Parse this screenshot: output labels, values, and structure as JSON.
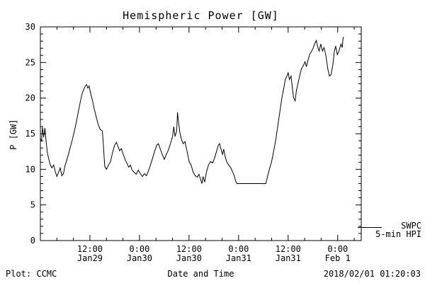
{
  "chart_data": {
    "type": "line",
    "title": "Hemispheric Power [GW]",
    "xlabel": "Date and Time",
    "ylabel": "P [GW]",
    "ylim": [
      0,
      30
    ],
    "yticks": [
      0,
      5,
      10,
      15,
      20,
      25,
      30
    ],
    "y_minor_step": 1,
    "xlim_hours": [
      0,
      77.7
    ],
    "x_unit": "hours since 2018-01-29 00:00 UT",
    "x_minor_step_hours": 4,
    "xticks": [
      {
        "t": 12,
        "line1": "12:00",
        "line2": "Jan29"
      },
      {
        "t": 24,
        "line1": "0:00",
        "line2": "Jan30"
      },
      {
        "t": 36,
        "line1": "12:00",
        "line2": "Jan30"
      },
      {
        "t": 48,
        "line1": "0:00",
        "line2": "Jan31"
      },
      {
        "t": 60,
        "line1": "12:00",
        "line2": "Jan31"
      },
      {
        "t": 72,
        "line1": "0:00",
        "line2": "Feb 1"
      }
    ],
    "grid": false,
    "legend": {
      "position": "right-bottom-outside",
      "line1": "SWPC",
      "line2": "5-min HPI"
    },
    "line_color": "#000000",
    "series": [
      {
        "name": "SWPC 5-min HPI",
        "points": [
          [
            0,
            14.3
          ],
          [
            0.3,
            14
          ],
          [
            0.5,
            15.9
          ],
          [
            0.8,
            14.5
          ],
          [
            1.1,
            15.8
          ],
          [
            1.4,
            13.8
          ],
          [
            1.7,
            12.3
          ],
          [
            2,
            11.5
          ],
          [
            2.4,
            10.6
          ],
          [
            2.8,
            10.2
          ],
          [
            3.2,
            10.6
          ],
          [
            3.6,
            9.7
          ],
          [
            4,
            9
          ],
          [
            4.4,
            9.6
          ],
          [
            4.8,
            10.2
          ],
          [
            5.2,
            9.1
          ],
          [
            5.6,
            9.4
          ],
          [
            6,
            10.6
          ],
          [
            6.4,
            11.3
          ],
          [
            6.8,
            12.1
          ],
          [
            7.2,
            13
          ],
          [
            7.7,
            14.1
          ],
          [
            8.2,
            15.3
          ],
          [
            8.7,
            16.6
          ],
          [
            9.2,
            18.1
          ],
          [
            9.7,
            19.6
          ],
          [
            10.1,
            20.6
          ],
          [
            10.5,
            21.2
          ],
          [
            10.9,
            21.7
          ],
          [
            11.2,
            21.9
          ],
          [
            11.5,
            21.4
          ],
          [
            11.8,
            21.7
          ],
          [
            12.2,
            20.6
          ],
          [
            12.6,
            19.7
          ],
          [
            13,
            18.6
          ],
          [
            13.5,
            17.4
          ],
          [
            14,
            16.3
          ],
          [
            14.5,
            15.6
          ],
          [
            15,
            15.4
          ],
          [
            15.3,
            13
          ],
          [
            15.6,
            10.4
          ],
          [
            16,
            10
          ],
          [
            16.5,
            10.6
          ],
          [
            17,
            11.1
          ],
          [
            17.5,
            12.4
          ],
          [
            18,
            13.4
          ],
          [
            18.4,
            13.8
          ],
          [
            18.8,
            13.2
          ],
          [
            19.2,
            12.6
          ],
          [
            19.6,
            12.9
          ],
          [
            20,
            12.2
          ],
          [
            20.5,
            11.4
          ],
          [
            21,
            10.8
          ],
          [
            21.4,
            10.3
          ],
          [
            21.8,
            10.6
          ],
          [
            22.2,
            9.9
          ],
          [
            22.7,
            9.6
          ],
          [
            23.2,
            9.3
          ],
          [
            23.7,
            9.9
          ],
          [
            24.2,
            9.4
          ],
          [
            24.7,
            9
          ],
          [
            25.2,
            9.4
          ],
          [
            25.7,
            9.1
          ],
          [
            26.2,
            9.8
          ],
          [
            26.7,
            10.7
          ],
          [
            27.2,
            11.6
          ],
          [
            27.7,
            12.6
          ],
          [
            28.2,
            13.4
          ],
          [
            28.6,
            13.6
          ],
          [
            29,
            12.9
          ],
          [
            29.5,
            12.1
          ],
          [
            30,
            11.4
          ],
          [
            30.5,
            12.1
          ],
          [
            31,
            12.7
          ],
          [
            31.5,
            13.6
          ],
          [
            32,
            14.6
          ],
          [
            32.3,
            16
          ],
          [
            32.6,
            14.6
          ],
          [
            33,
            15.4
          ],
          [
            33.2,
            18
          ],
          [
            33.5,
            16.4
          ],
          [
            33.8,
            15.1
          ],
          [
            34.2,
            14.1
          ],
          [
            34.6,
            13.6
          ],
          [
            35,
            13.9
          ],
          [
            35.5,
            12.6
          ],
          [
            36,
            11.1
          ],
          [
            36.5,
            10.6
          ],
          [
            37,
            9.6
          ],
          [
            37.5,
            9.1
          ],
          [
            38,
            8.9
          ],
          [
            38.4,
            9.3
          ],
          [
            38.8,
            8.6
          ],
          [
            39.1,
            8
          ],
          [
            39.4,
            9
          ],
          [
            39.8,
            8.2
          ],
          [
            40.2,
            9.6
          ],
          [
            40.7,
            10.6
          ],
          [
            41.2,
            11.1
          ],
          [
            41.7,
            10.9
          ],
          [
            42.2,
            11.6
          ],
          [
            42.7,
            12.6
          ],
          [
            43.1,
            13.4
          ],
          [
            43.4,
            13.6
          ],
          [
            43.7,
            12.9
          ],
          [
            44.1,
            12.1
          ],
          [
            44.4,
            12.8
          ],
          [
            44.7,
            11.9
          ],
          [
            45.1,
            11.1
          ],
          [
            45.6,
            10.6
          ],
          [
            46.1,
            10.2
          ],
          [
            46.6,
            9.6
          ],
          [
            47,
            9
          ],
          [
            47.3,
            8.3
          ],
          [
            47.6,
            8
          ],
          [
            49,
            8
          ],
          [
            51,
            8
          ],
          [
            53,
            8
          ],
          [
            54.6,
            8
          ],
          [
            55,
            9
          ],
          [
            55.5,
            10.1
          ],
          [
            56,
            11.1
          ],
          [
            56.5,
            12.6
          ],
          [
            57,
            14.1
          ],
          [
            57.5,
            16.1
          ],
          [
            58,
            18.1
          ],
          [
            58.5,
            20.1
          ],
          [
            59,
            21.6
          ],
          [
            59.3,
            22.6
          ],
          [
            59.7,
            23.1
          ],
          [
            60,
            23.6
          ],
          [
            60.3,
            22.6
          ],
          [
            60.7,
            23.1
          ],
          [
            61,
            21.6
          ],
          [
            61.3,
            20.1
          ],
          [
            61.7,
            19.6
          ],
          [
            62,
            21.1
          ],
          [
            62.4,
            22.1
          ],
          [
            62.8,
            23.1
          ],
          [
            63.2,
            24.1
          ],
          [
            63.7,
            24.6
          ],
          [
            64.1,
            25.1
          ],
          [
            64.4,
            24.4
          ],
          [
            64.8,
            25.3
          ],
          [
            65.2,
            26.1
          ],
          [
            65.7,
            26.6
          ],
          [
            66.1,
            27.1
          ],
          [
            66.4,
            27.6
          ],
          [
            66.8,
            28.1
          ],
          [
            67.2,
            27.1
          ],
          [
            67.5,
            26.6
          ],
          [
            67.9,
            27.6
          ],
          [
            68.3,
            26.6
          ],
          [
            68.7,
            27.1
          ],
          [
            69.1,
            26.1
          ],
          [
            69.6,
            24.1
          ],
          [
            70,
            23.1
          ],
          [
            70.4,
            23.3
          ],
          [
            70.8,
            24.6
          ],
          [
            71.2,
            26.6
          ],
          [
            71.5,
            27.3
          ],
          [
            71.9,
            26.1
          ],
          [
            72.3,
            26.6
          ],
          [
            72.8,
            27.6
          ],
          [
            73.1,
            27.1
          ],
          [
            73.3,
            28.4
          ],
          [
            73.4,
            28.6
          ]
        ]
      }
    ]
  },
  "footer": {
    "left": "Plot: CCMC",
    "right": "2018/02/01 01:20:03"
  }
}
